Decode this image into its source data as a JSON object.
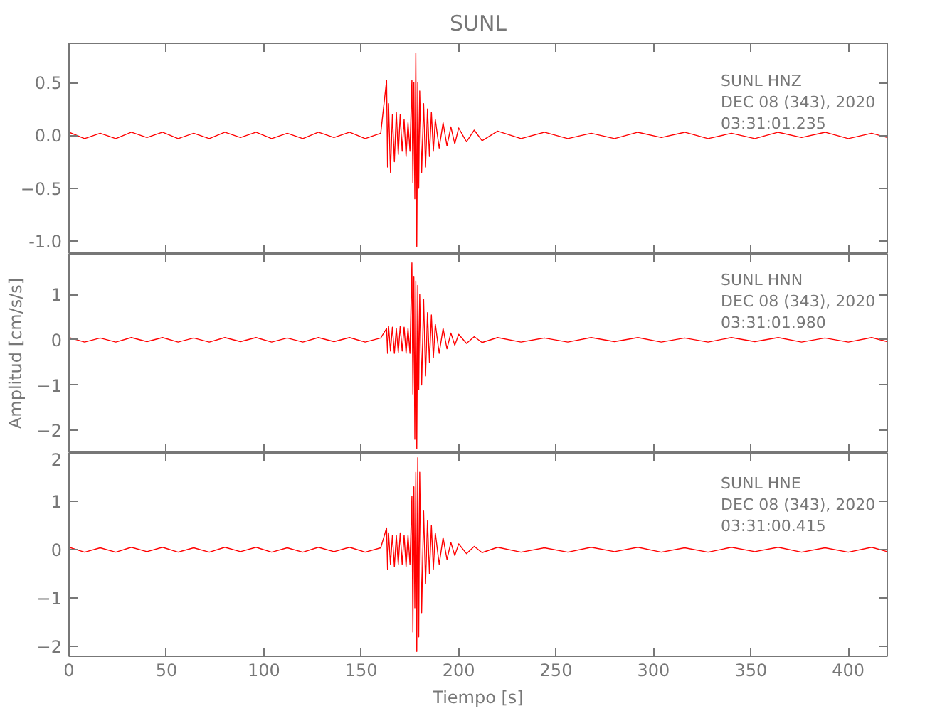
{
  "chart_data": [
    {
      "type": "line",
      "title": "SUNL",
      "annotations": [
        "SUNL   HNZ",
        "DEC 08 (343), 2020",
        "03:31:01.235"
      ],
      "xlim": [
        0,
        420
      ],
      "xticks": [
        0,
        50,
        100,
        150,
        200,
        250,
        300,
        350,
        400
      ],
      "ylim": [
        -1.12,
        0.87
      ],
      "yticks": [
        0.5,
        {
          "value": 0,
          "label": "0.0"
        },
        -0.5,
        {
          "value": -1,
          "label": "-1.0"
        }
      ],
      "tick_labels": "y",
      "grid": false,
      "marker": "none",
      "line_style": "solid",
      "series": [
        {
          "color": "#ff0000",
          "x": [
            0,
            8,
            16,
            24,
            32,
            40,
            48,
            56,
            64,
            72,
            80,
            88,
            96,
            104,
            112,
            120,
            128,
            136,
            144,
            152,
            160,
            163,
            163.5,
            164,
            165,
            166,
            167,
            168,
            169,
            170,
            171,
            172,
            173,
            174,
            175,
            176,
            176.5,
            177,
            177.5,
            178,
            178.5,
            179,
            179.5,
            180,
            181,
            182,
            183,
            184,
            185,
            186,
            187,
            188,
            190,
            192,
            194,
            196,
            198,
            200,
            204,
            208,
            212,
            220,
            232,
            244,
            256,
            268,
            280,
            292,
            304,
            316,
            328,
            340,
            352,
            364,
            376,
            388,
            400,
            412,
            420
          ],
          "values": [
            0.03,
            -0.03,
            0.02,
            -0.03,
            0.03,
            -0.02,
            0.03,
            -0.03,
            0.02,
            -0.03,
            0.03,
            -0.02,
            0.03,
            -0.03,
            0.02,
            -0.03,
            0.03,
            -0.02,
            0.03,
            -0.03,
            0.02,
            0.52,
            -0.3,
            0.3,
            -0.35,
            0.2,
            -0.25,
            0.22,
            -0.18,
            0.2,
            -0.15,
            0.15,
            -0.2,
            0.12,
            -0.15,
            0.52,
            -0.45,
            0.5,
            -0.6,
            0.78,
            -1.05,
            0.5,
            -0.5,
            0.42,
            -0.35,
            0.3,
            -0.3,
            0.25,
            -0.2,
            0.22,
            -0.15,
            0.15,
            -0.12,
            0.12,
            -0.1,
            0.08,
            -0.08,
            0.07,
            -0.06,
            0.05,
            -0.05,
            0.04,
            -0.03,
            0.03,
            -0.03,
            0.02,
            -0.03,
            0.03,
            -0.02,
            0.03,
            -0.03,
            0.02,
            -0.03,
            0.03,
            -0.02,
            0.03,
            -0.03,
            0.02,
            -0.02
          ]
        }
      ]
    },
    {
      "type": "line",
      "ylabel": "Amplitud [cm/s/s]",
      "annotations": [
        "SUNL   HNN",
        "DEC 08 (343), 2020",
        "03:31:01.980"
      ],
      "xlim": [
        0,
        420
      ],
      "xticks": [
        0,
        50,
        100,
        150,
        200,
        250,
        300,
        350,
        400
      ],
      "ylim": [
        -2.5,
        1.9
      ],
      "yticks": [
        -2,
        -1,
        0,
        1
      ],
      "tick_labels": "y",
      "grid": false,
      "marker": "none",
      "line_style": "solid",
      "series": [
        {
          "color": "#ff0000",
          "x": [
            0,
            8,
            16,
            24,
            32,
            40,
            48,
            56,
            64,
            72,
            80,
            88,
            96,
            104,
            112,
            120,
            128,
            136,
            144,
            152,
            160,
            163,
            163.5,
            164,
            165,
            166,
            167,
            168,
            169,
            170,
            171,
            172,
            173,
            174,
            175,
            176,
            176.5,
            177,
            177.5,
            178,
            178.5,
            179,
            179.5,
            180,
            181,
            182,
            183,
            184,
            185,
            186,
            187,
            188,
            190,
            192,
            194,
            196,
            198,
            200,
            204,
            208,
            212,
            220,
            232,
            244,
            256,
            268,
            280,
            292,
            304,
            316,
            328,
            340,
            352,
            364,
            376,
            388,
            400,
            412,
            420
          ],
          "values": [
            0.05,
            -0.05,
            0.04,
            -0.05,
            0.05,
            -0.04,
            0.05,
            -0.05,
            0.04,
            -0.05,
            0.05,
            -0.04,
            0.05,
            -0.05,
            0.04,
            -0.05,
            0.05,
            -0.04,
            0.05,
            -0.05,
            0.04,
            0.25,
            -0.3,
            0.3,
            -0.25,
            0.28,
            -0.3,
            0.25,
            -0.28,
            0.3,
            -0.25,
            0.28,
            -0.3,
            0.25,
            -0.3,
            1.7,
            -1.2,
            1.4,
            -2.2,
            1.3,
            -2.4,
            1.2,
            -1.1,
            1.0,
            -1.0,
            0.9,
            -0.8,
            0.6,
            -0.5,
            0.55,
            -0.4,
            0.35,
            -0.3,
            0.25,
            -0.2,
            0.15,
            -0.12,
            0.12,
            -0.08,
            0.07,
            -0.06,
            0.05,
            -0.05,
            0.04,
            -0.05,
            0.05,
            -0.04,
            0.05,
            -0.05,
            0.04,
            -0.05,
            0.05,
            -0.04,
            0.05,
            -0.05,
            0.04,
            -0.05,
            0.05,
            -0.04
          ]
        }
      ]
    },
    {
      "type": "line",
      "xlabel": "Tiempo [s]",
      "annotations": [
        "SUNL   HNE",
        "DEC 08 (343), 2020",
        "03:31:00.415"
      ],
      "xlim": [
        0,
        420
      ],
      "xticks": [
        0,
        50,
        100,
        150,
        200,
        250,
        300,
        350,
        400
      ],
      "ylim": [
        -2.2,
        2.0
      ],
      "yticks": [
        -2,
        -1,
        0,
        1,
        2
      ],
      "grid": false,
      "marker": "none",
      "line_style": "solid",
      "series": [
        {
          "color": "#ff0000",
          "x": [
            0,
            8,
            16,
            24,
            32,
            40,
            48,
            56,
            64,
            72,
            80,
            88,
            96,
            104,
            112,
            120,
            128,
            136,
            144,
            152,
            160,
            163,
            163.5,
            164,
            165,
            166,
            167,
            168,
            169,
            170,
            171,
            172,
            173,
            174,
            175,
            176,
            176.5,
            177,
            177.5,
            178,
            178.5,
            179,
            179.5,
            180,
            181,
            182,
            183,
            184,
            185,
            186,
            187,
            188,
            190,
            192,
            194,
            196,
            198,
            200,
            204,
            208,
            212,
            220,
            232,
            244,
            256,
            268,
            280,
            292,
            304,
            316,
            328,
            340,
            352,
            364,
            376,
            388,
            400,
            412,
            420
          ],
          "values": [
            0.05,
            -0.05,
            0.04,
            -0.05,
            0.05,
            -0.04,
            0.05,
            -0.05,
            0.04,
            -0.05,
            0.05,
            -0.04,
            0.05,
            -0.05,
            0.04,
            -0.05,
            0.05,
            -0.04,
            0.05,
            -0.05,
            0.04,
            0.45,
            -0.4,
            0.35,
            -0.3,
            0.3,
            -0.35,
            0.3,
            -0.3,
            0.35,
            -0.3,
            0.3,
            -0.35,
            0.3,
            -0.3,
            1.1,
            -1.7,
            1.3,
            -1.2,
            1.6,
            -2.1,
            1.9,
            -1.8,
            1.6,
            -1.3,
            0.8,
            -0.7,
            0.6,
            -0.5,
            0.5,
            -0.4,
            0.35,
            -0.3,
            0.25,
            -0.2,
            0.15,
            -0.12,
            0.12,
            -0.08,
            0.07,
            -0.06,
            0.05,
            -0.05,
            0.04,
            -0.05,
            0.05,
            -0.04,
            0.05,
            -0.05,
            0.04,
            -0.05,
            0.05,
            -0.04,
            0.05,
            -0.05,
            0.04,
            -0.05,
            0.05,
            -0.04
          ]
        }
      ]
    }
  ]
}
